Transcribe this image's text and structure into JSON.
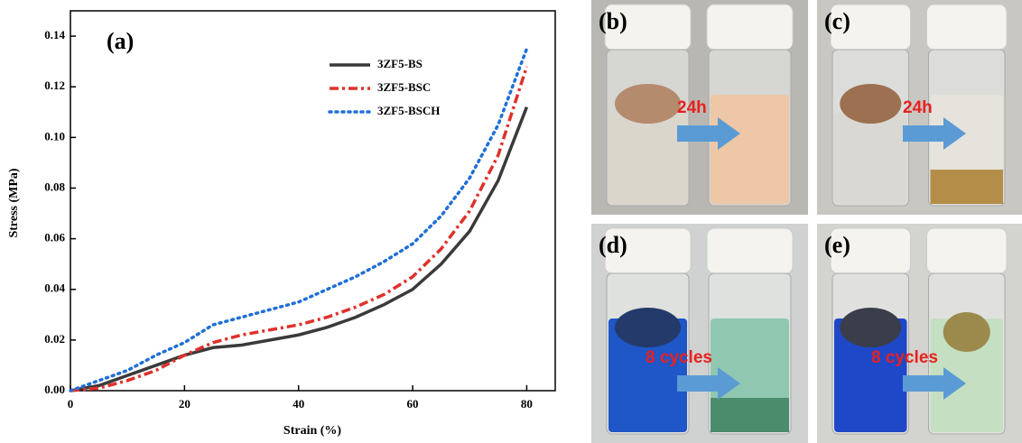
{
  "chart_data": {
    "type": "line",
    "panel_label": "(a)",
    "x_label": "Strain (%)",
    "y_label": "Stress (MPa)",
    "x": [
      0,
      5,
      10,
      15,
      20,
      25,
      30,
      35,
      40,
      45,
      50,
      55,
      60,
      65,
      70,
      75,
      80
    ],
    "series": [
      {
        "name": "3ZF5-BS",
        "color": "#3a3a3a",
        "dash": "solid",
        "values": [
          0,
          0.002,
          0.006,
          0.01,
          0.014,
          0.017,
          0.018,
          0.02,
          0.022,
          0.025,
          0.029,
          0.034,
          0.04,
          0.05,
          0.063,
          0.083,
          0.112
        ]
      },
      {
        "name": "3ZF5-BSC",
        "color": "#e0302a",
        "dash": "dashdot",
        "values": [
          0,
          0.001,
          0.004,
          0.008,
          0.014,
          0.019,
          0.022,
          0.024,
          0.026,
          0.029,
          0.033,
          0.038,
          0.045,
          0.056,
          0.071,
          0.093,
          0.128
        ]
      },
      {
        "name": "3ZF5-BSCH",
        "color": "#1f6fd8",
        "dash": "dotted",
        "values": [
          0,
          0.004,
          0.008,
          0.014,
          0.019,
          0.026,
          0.029,
          0.032,
          0.035,
          0.04,
          0.045,
          0.051,
          0.058,
          0.069,
          0.084,
          0.105,
          0.135
        ]
      }
    ],
    "xlim": [
      0,
      85
    ],
    "ylim": [
      0,
      0.15
    ],
    "xticks": [
      0,
      20,
      40,
      60,
      80
    ],
    "yticks": [
      {
        "value": 0,
        "label": "0.00"
      },
      {
        "value": 0.02,
        "label": "0.02"
      },
      {
        "value": 0.04,
        "label": "0.04"
      },
      {
        "value": 0.06,
        "label": "0.06"
      },
      {
        "value": 0.08,
        "label": "0.08"
      },
      {
        "value": 0.1,
        "label": "0.10"
      },
      {
        "value": 0.12,
        "label": "0.12"
      },
      {
        "value": 0.14,
        "label": "0.14"
      }
    ],
    "legend": "upper right"
  },
  "photos": [
    {
      "label": "(b)",
      "note": "24h"
    },
    {
      "label": "(c)",
      "note": "24h"
    },
    {
      "label": "(d)",
      "note": "8 cycles"
    },
    {
      "label": "(e)",
      "note": "8 cycles"
    }
  ]
}
